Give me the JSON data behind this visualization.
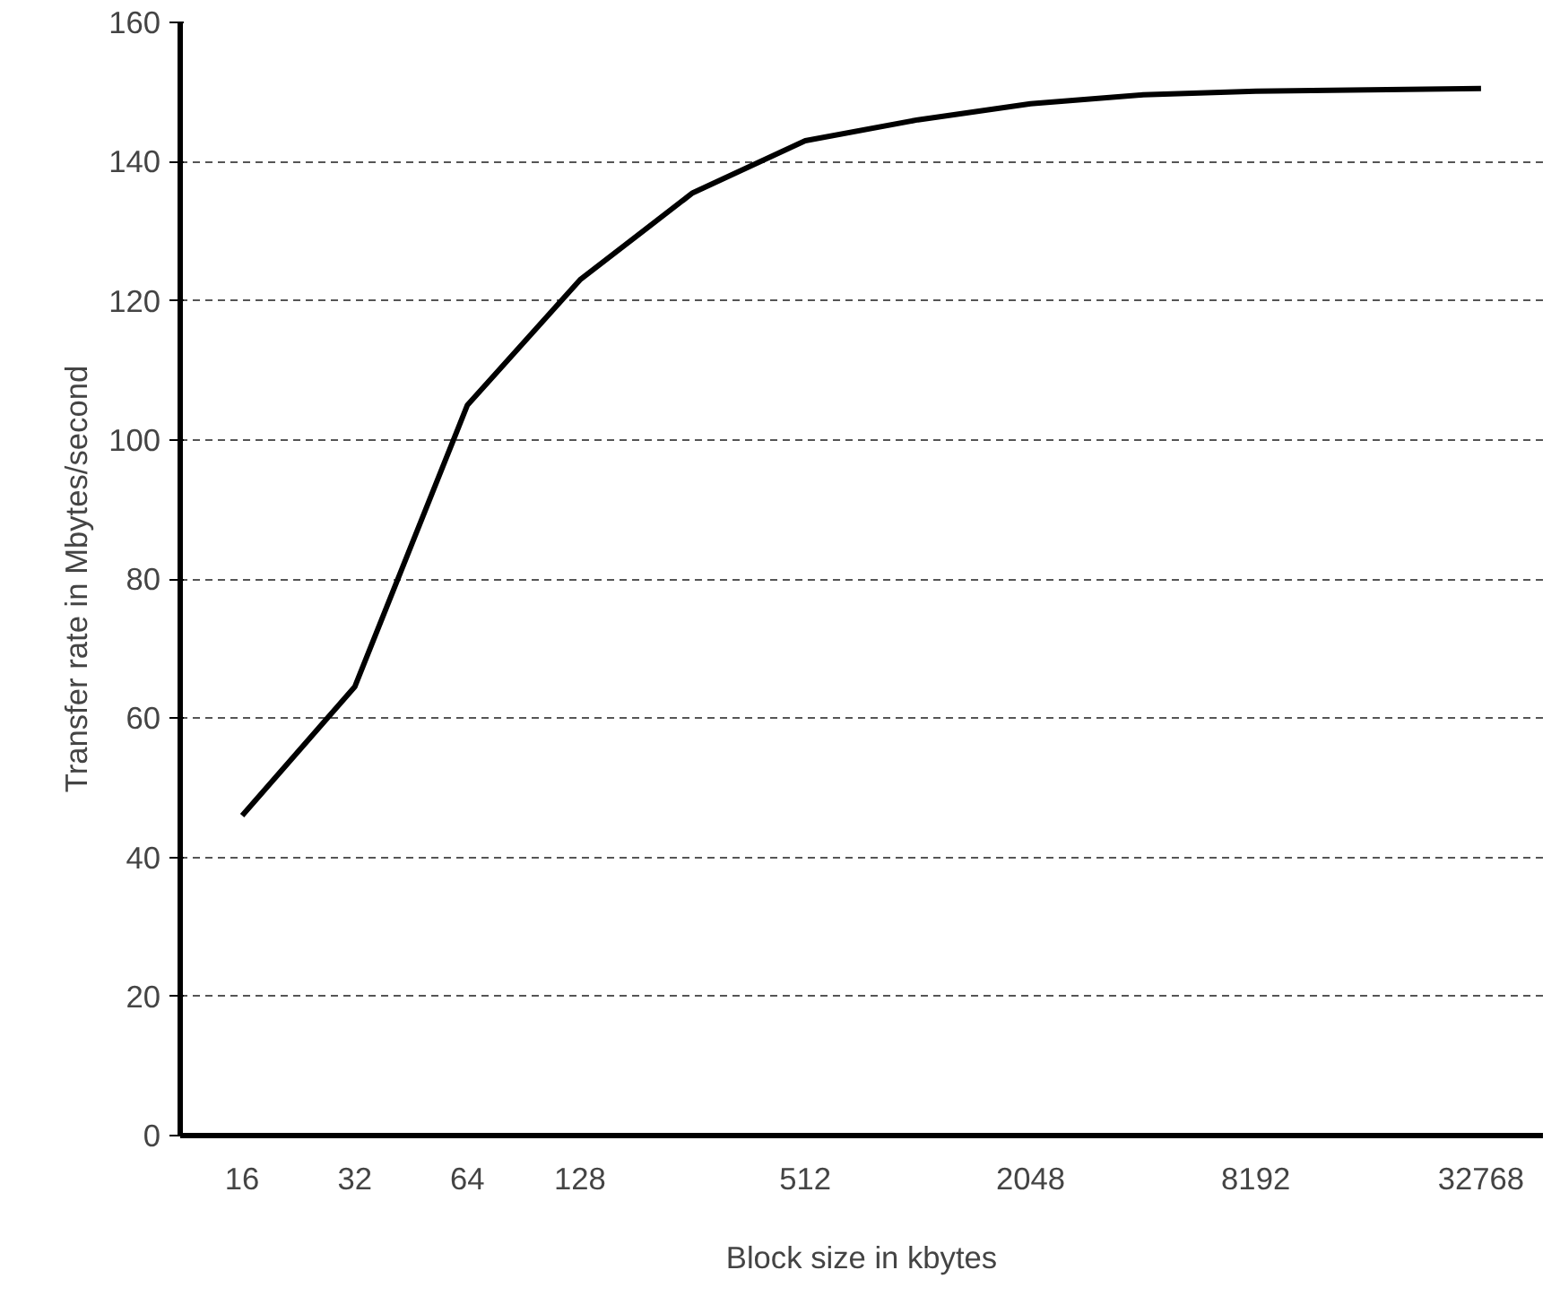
{
  "chart_data": {
    "type": "line",
    "xlabel": "Block size in kbytes",
    "ylabel": "Transfer rate in Mbytes/second",
    "categories": [
      "16",
      "32",
      "64",
      "128",
      null,
      "512",
      null,
      "2048",
      null,
      "8192",
      null,
      "32768"
    ],
    "series": [
      {
        "color": "#000000",
        "values": [
          46,
          64.5,
          105,
          123,
          135.5,
          143,
          146,
          148.3,
          149.6,
          150.1,
          150.3,
          150.5
        ]
      }
    ],
    "ylim": [
      0,
      160
    ],
    "yticks": [
      0,
      20,
      40,
      60,
      80,
      100,
      120,
      140,
      160
    ],
    "grid": "y",
    "marker": "none",
    "line_style": "solid"
  }
}
